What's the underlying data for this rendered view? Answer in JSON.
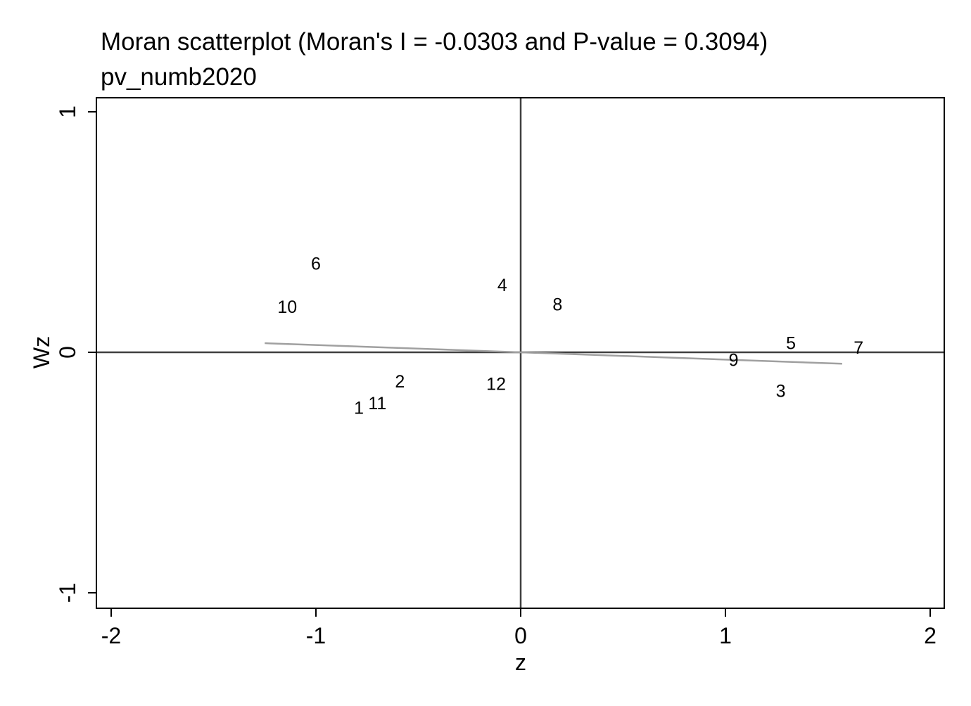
{
  "chart_data": {
    "type": "scatter",
    "title": "Moran scatterplot (Moran's I = -0.0303 and P-value = 0.3094)",
    "subtitle": "pv_numb2020",
    "xlabel": "z",
    "ylabel": "Wz",
    "xlim": [
      -2.07,
      2.07
    ],
    "ylim": [
      -1.06,
      1.06
    ],
    "x_ticks": [
      -2,
      -1,
      0,
      1,
      2
    ],
    "y_ticks": [
      -1,
      0,
      1
    ],
    "grid": false,
    "marker_style": "labels",
    "points": [
      {
        "label": "1",
        "x": -0.79,
        "y": -0.23
      },
      {
        "label": "2",
        "x": -0.59,
        "y": -0.12
      },
      {
        "label": "3",
        "x": 1.27,
        "y": -0.16
      },
      {
        "label": "4",
        "x": -0.09,
        "y": 0.28
      },
      {
        "label": "5",
        "x": 1.32,
        "y": 0.04
      },
      {
        "label": "6",
        "x": -1.0,
        "y": 0.37
      },
      {
        "label": "7",
        "x": 1.65,
        "y": 0.02
      },
      {
        "label": "8",
        "x": 0.18,
        "y": 0.2
      },
      {
        "label": "9",
        "x": 1.04,
        "y": -0.03
      },
      {
        "label": "10",
        "x": -1.14,
        "y": 0.19
      },
      {
        "label": "11",
        "x": -0.7,
        "y": -0.21
      },
      {
        "label": "12",
        "x": -0.12,
        "y": -0.13
      }
    ],
    "fit_line": {
      "slope": -0.0303,
      "x_range": [
        -1.25,
        1.57
      ]
    },
    "reference_lines": {
      "x": 0,
      "y": 0
    },
    "colors": {
      "fit_line": "#a0a0a0",
      "axes": "#000000",
      "reference": "#404040"
    }
  }
}
